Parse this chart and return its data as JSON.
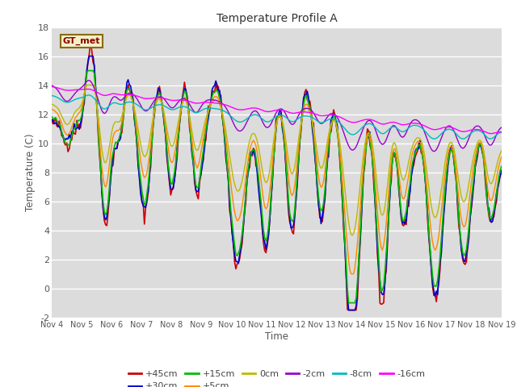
{
  "title": "Temperature Profile A",
  "xlabel": "Time",
  "ylabel": "Temperature (C)",
  "ylim": [
    -2,
    18
  ],
  "xlim": [
    0,
    360
  ],
  "plot_bg": "#dcdcdc",
  "legend_label": "GT_met",
  "legend_box_color": "#f5f0c8",
  "legend_box_edge": "#8b6914",
  "legend_text_color": "#8b0000",
  "xtick_labels": [
    "Nov 4",
    "Nov 5",
    "Nov 6",
    "Nov 7",
    "Nov 8",
    "Nov 9",
    "Nov 10",
    "Nov 11",
    "Nov 12",
    "Nov 13",
    "Nov 14",
    "Nov 15",
    "Nov 16",
    "Nov 17",
    "Nov 18",
    "Nov 19"
  ],
  "series": [
    {
      "label": "+45cm",
      "color": "#cc0000"
    },
    {
      "label": "+30cm",
      "color": "#0000cc"
    },
    {
      "label": "+15cm",
      "color": "#00bb00"
    },
    {
      "label": "+5cm",
      "color": "#ff8800"
    },
    {
      "label": "0cm",
      "color": "#bbbb00"
    },
    {
      "label": "-2cm",
      "color": "#9900cc"
    },
    {
      "label": "-8cm",
      "color": "#00bbbb"
    },
    {
      "label": "-16cm",
      "color": "#ff00ff"
    }
  ]
}
